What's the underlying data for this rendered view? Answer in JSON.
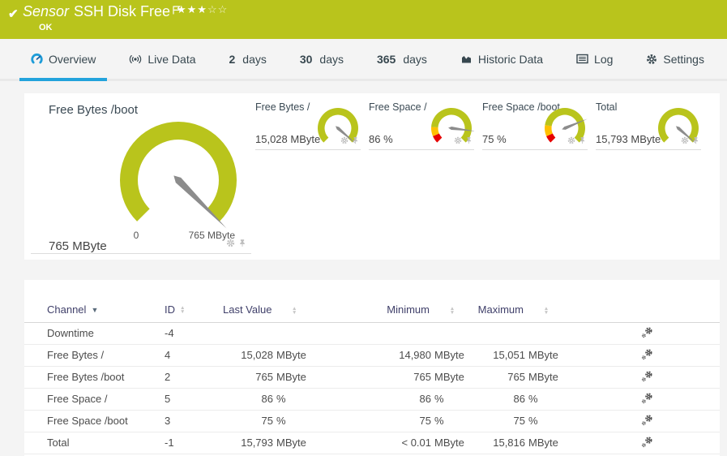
{
  "colors": {
    "brand_green": "#b9c41c",
    "accent_blue": "#23a3dc",
    "warn_yellow": "#ffc000",
    "alarm_red": "#e60000",
    "needle_gray": "#8c8c8c"
  },
  "topbar": {
    "title_prefix": "Sensor",
    "title": "SSH Disk Free",
    "status": "OK",
    "stars_filled": "★★★",
    "stars_empty": "☆☆"
  },
  "tabs": {
    "overview": "Overview",
    "live_data": "Live Data",
    "d2_num": "2",
    "d2_label": "days",
    "d30_num": "30",
    "d30_label": "days",
    "d365_num": "365",
    "d365_label": "days",
    "historic": "Historic Data",
    "log": "Log",
    "settings": "Settings"
  },
  "gauges": {
    "main": {
      "title": "Free Bytes /boot",
      "value": "765 MByte",
      "scale_min_label": "0",
      "scale_max_label": "765 MByte",
      "fraction": 1.0,
      "segments": [
        {
          "from": 0,
          "to": 1,
          "color": "green"
        }
      ]
    },
    "small": [
      {
        "title": "Free Bytes /",
        "value": "15,028 MByte",
        "fraction": 0.985,
        "segments": [
          {
            "from": 0,
            "to": 1,
            "color": "green"
          }
        ]
      },
      {
        "title": "Free Space /",
        "value": "86 %",
        "fraction": 0.86,
        "segments": [
          {
            "from": 0,
            "to": 0.08,
            "color": "red"
          },
          {
            "from": 0.08,
            "to": 0.18,
            "color": "yellow"
          },
          {
            "from": 0.18,
            "to": 1,
            "color": "green"
          }
        ]
      },
      {
        "title": "Free Space /boot",
        "value": "75 %",
        "fraction": 0.75,
        "segments": [
          {
            "from": 0,
            "to": 0.08,
            "color": "red"
          },
          {
            "from": 0.08,
            "to": 0.2,
            "color": "yellow"
          },
          {
            "from": 0.2,
            "to": 1,
            "color": "green"
          }
        ]
      },
      {
        "title": "Total",
        "value": "15,793 MByte",
        "fraction": 0.985,
        "segments": [
          {
            "from": 0,
            "to": 1,
            "color": "green"
          }
        ]
      }
    ]
  },
  "table": {
    "columns": {
      "channel": "Channel",
      "id": "ID",
      "last": "Last Value",
      "min": "Minimum",
      "max": "Maximum"
    },
    "rows": [
      {
        "channel": "Downtime",
        "id": "-4",
        "last": "",
        "last_unit": "",
        "min": "",
        "min_unit": "",
        "max": "",
        "max_unit": ""
      },
      {
        "channel": "Free Bytes /",
        "id": "4",
        "last": "15,028",
        "last_unit": "MByte",
        "min": "14,980",
        "min_unit": "MByte",
        "max": "15,051",
        "max_unit": "MByte"
      },
      {
        "channel": "Free Bytes /boot",
        "id": "2",
        "last": "765",
        "last_unit": "MByte",
        "min": "765",
        "min_unit": "MByte",
        "max": "765",
        "max_unit": "MByte"
      },
      {
        "channel": "Free Space /",
        "id": "5",
        "last": "86",
        "last_unit": "%",
        "min": "86",
        "min_unit": "%",
        "max": "86",
        "max_unit": "%"
      },
      {
        "channel": "Free Space /boot",
        "id": "3",
        "last": "75",
        "last_unit": "%",
        "min": "75",
        "min_unit": "%",
        "max": "75",
        "max_unit": "%"
      },
      {
        "channel": "Total",
        "id": "-1",
        "last": "15,793",
        "last_unit": "MByte",
        "min": "< 0.01",
        "min_unit": "MByte",
        "max": "15,816",
        "max_unit": "MByte"
      }
    ]
  }
}
